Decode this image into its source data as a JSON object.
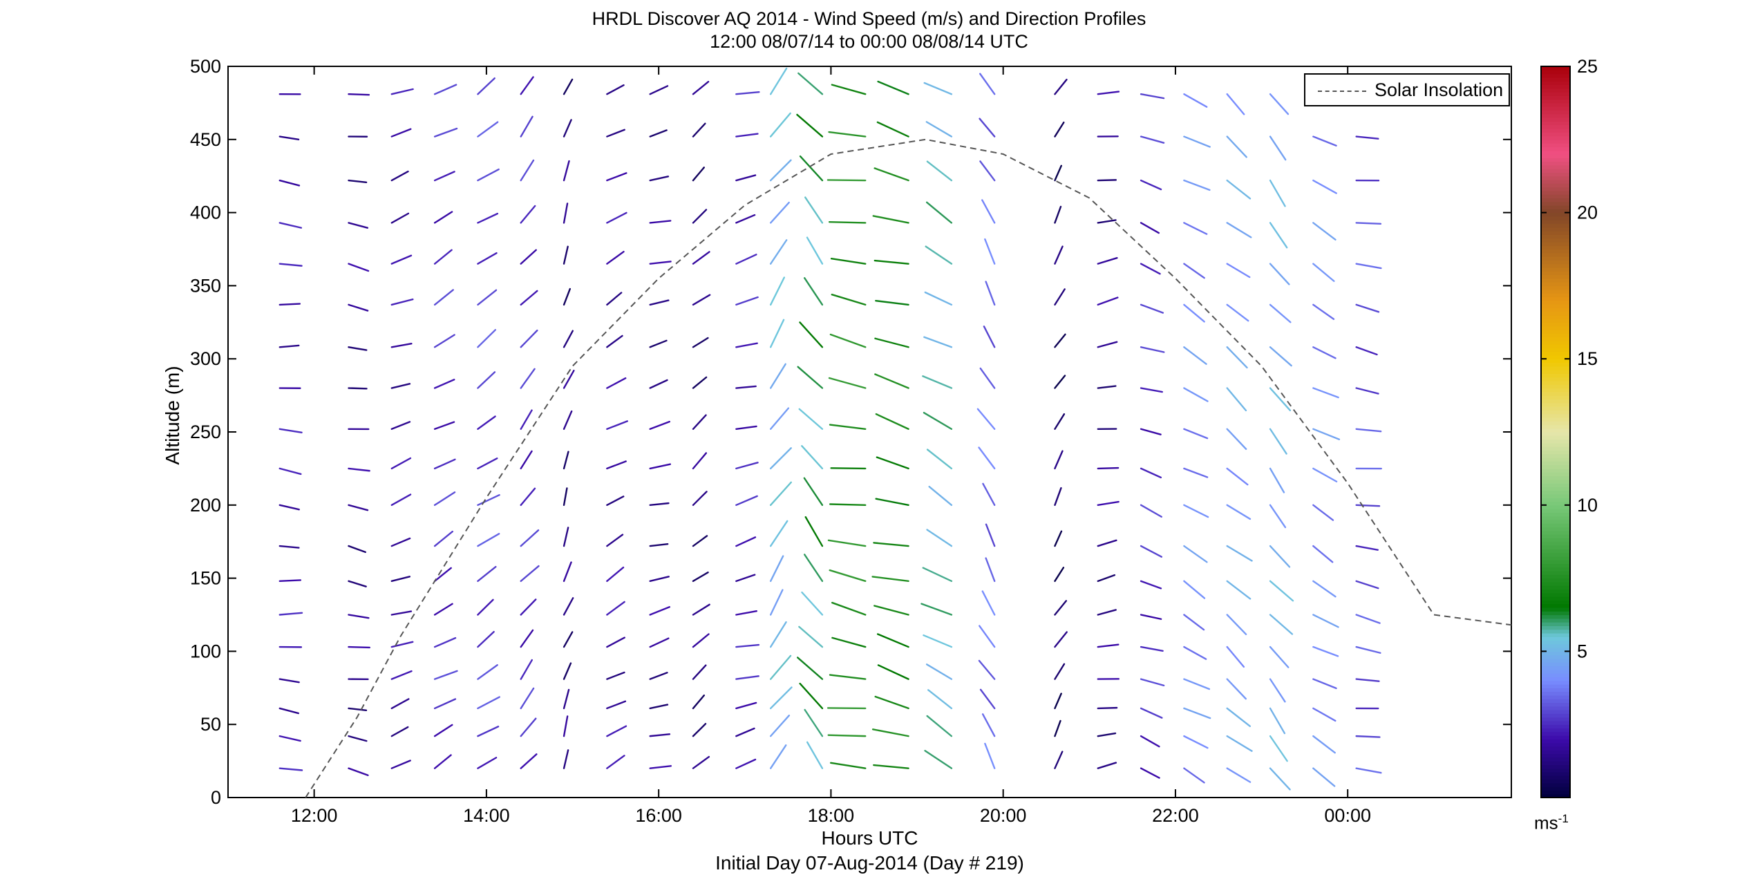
{
  "title_line1": "HRDL Discover AQ 2014 - Wind Speed (m/s) and Direction Profiles",
  "title_line2": "12:00 08/07/14 to 00:00 08/08/14  UTC",
  "xlabel": "Hours UTC",
  "subtitle_bottom": "Initial Day 07-Aug-2014 (Day # 219)",
  "legend_label": "Solar Insolation",
  "colorbar_unit": "ms",
  "colorbar_unit_exp": "-1",
  "chart_data": {
    "type": "barbs",
    "ylabel": "Altitude (m)",
    "ylim": [
      0,
      500
    ],
    "xlim_hours": [
      11.0,
      25.9
    ],
    "x_ticks": [
      {
        "hour": 12,
        "label": "12:00"
      },
      {
        "hour": 14,
        "label": "14:00"
      },
      {
        "hour": 16,
        "label": "16:00"
      },
      {
        "hour": 18,
        "label": "18:00"
      },
      {
        "hour": 20,
        "label": "20:00"
      },
      {
        "hour": 22,
        "label": "22:00"
      },
      {
        "hour": 24,
        "label": "00:00"
      }
    ],
    "y_ticks": [
      0,
      50,
      100,
      150,
      200,
      250,
      300,
      350,
      400,
      450,
      500
    ],
    "colorbar": {
      "min": 0,
      "max": 25,
      "ticks": [
        5,
        10,
        15,
        20,
        25
      ]
    },
    "altitudes_m": [
      20,
      42,
      61,
      81,
      103,
      125,
      148,
      172,
      200,
      225,
      252,
      280,
      308,
      337,
      365,
      393,
      422,
      452,
      481
    ],
    "times_h": [
      11.6,
      12.4,
      12.9,
      13.4,
      13.9,
      14.4,
      14.9,
      15.4,
      15.9,
      16.4,
      16.9,
      17.3,
      17.9,
      18.4,
      18.9,
      19.4,
      19.9,
      20.6,
      21.1,
      21.6,
      22.1,
      22.6,
      23.1,
      23.6,
      24.1
    ],
    "barb_profiles": [
      {
        "time_h": 11.6,
        "speed_ms": 2.0,
        "dir_deg": 275
      },
      {
        "time_h": 12.4,
        "speed_ms": 1.5,
        "dir_deg": 280
      },
      {
        "time_h": 12.9,
        "speed_ms": 1.8,
        "dir_deg": 250
      },
      {
        "time_h": 13.4,
        "speed_ms": 2.5,
        "dir_deg": 240
      },
      {
        "time_h": 13.9,
        "speed_ms": 2.8,
        "dir_deg": 235
      },
      {
        "time_h": 14.4,
        "speed_ms": 2.5,
        "dir_deg": 220
      },
      {
        "time_h": 14.9,
        "speed_ms": 1.2,
        "dir_deg": 200
      },
      {
        "time_h": 15.4,
        "speed_ms": 1.8,
        "dir_deg": 240
      },
      {
        "time_h": 15.9,
        "speed_ms": 1.5,
        "dir_deg": 255
      },
      {
        "time_h": 16.4,
        "speed_ms": 1.2,
        "dir_deg": 230
      },
      {
        "time_h": 16.9,
        "speed_ms": 2.2,
        "dir_deg": 255
      },
      {
        "time_h": 17.3,
        "speed_ms": 5.0,
        "dir_deg": 215
      },
      {
        "time_h": 17.9,
        "speed_ms": 6.0,
        "dir_deg": 140
      },
      {
        "time_h": 18.4,
        "speed_ms": 7.5,
        "dir_deg": 100
      },
      {
        "time_h": 18.9,
        "speed_ms": 7.0,
        "dir_deg": 105
      },
      {
        "time_h": 19.4,
        "speed_ms": 5.5,
        "dir_deg": 120
      },
      {
        "time_h": 19.9,
        "speed_ms": 3.5,
        "dir_deg": 150
      },
      {
        "time_h": 20.6,
        "speed_ms": 0.8,
        "dir_deg": 210
      },
      {
        "time_h": 21.1,
        "speed_ms": 1.5,
        "dir_deg": 260
      },
      {
        "time_h": 21.6,
        "speed_ms": 2.5,
        "dir_deg": 290
      },
      {
        "time_h": 22.1,
        "speed_ms": 4.0,
        "dir_deg": 300
      },
      {
        "time_h": 22.6,
        "speed_ms": 4.5,
        "dir_deg": 310
      },
      {
        "time_h": 23.1,
        "speed_ms": 4.8,
        "dir_deg": 320
      },
      {
        "time_h": 23.6,
        "speed_ms": 4.0,
        "dir_deg": 300
      },
      {
        "time_h": 24.1,
        "speed_ms": 3.0,
        "dir_deg": 280
      }
    ],
    "series": [
      {
        "name": "Solar Insolation",
        "type": "line",
        "style": "dashed",
        "color": "#555555",
        "x": [
          11.9,
          12.5,
          13.0,
          14.0,
          15.0,
          16.0,
          17.0,
          18.0,
          19.1,
          20.0,
          21.0,
          22.0,
          23.0,
          24.0,
          25.0,
          25.9
        ],
        "y": [
          0,
          55,
          110,
          205,
          295,
          355,
          405,
          440,
          450,
          440,
          410,
          355,
          295,
          215,
          125,
          118
        ]
      }
    ],
    "grid": false,
    "legend_position": "top-right"
  }
}
